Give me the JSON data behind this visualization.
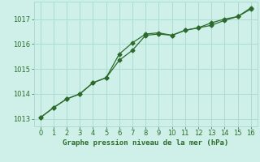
{
  "xlabel": "Graphe pression niveau de la mer (hPa)",
  "background_color": "#cef0e8",
  "grid_color": "#aaddd4",
  "line_color": "#2d6b2d",
  "xlim": [
    -0.5,
    16.5
  ],
  "ylim": [
    1012.7,
    1017.7
  ],
  "yticks": [
    1013,
    1014,
    1015,
    1016,
    1017
  ],
  "xticks": [
    0,
    1,
    2,
    3,
    4,
    5,
    6,
    7,
    8,
    9,
    10,
    11,
    12,
    13,
    14,
    15,
    16
  ],
  "line1_x": [
    0,
    1,
    2,
    3,
    4,
    5,
    6,
    7,
    8,
    9,
    10,
    11,
    12,
    13,
    14,
    15,
    16
  ],
  "line1_y": [
    1013.05,
    1013.45,
    1013.8,
    1014.0,
    1014.45,
    1014.65,
    1015.35,
    1015.75,
    1016.35,
    1016.4,
    1016.35,
    1016.55,
    1016.65,
    1016.75,
    1016.95,
    1017.1,
    1017.4
  ],
  "line2_x": [
    0,
    1,
    2,
    3,
    4,
    5,
    6,
    7,
    8,
    9,
    10,
    11,
    12,
    13,
    14,
    15,
    16
  ],
  "line2_y": [
    1013.05,
    1013.45,
    1013.8,
    1014.0,
    1014.45,
    1014.65,
    1015.6,
    1016.05,
    1016.4,
    1016.45,
    1016.35,
    1016.55,
    1016.65,
    1016.85,
    1017.0,
    1017.1,
    1017.45
  ],
  "marker_size": 2.5,
  "line_width": 0.9,
  "xlabel_fontsize": 6.5,
  "tick_fontsize": 6.0
}
